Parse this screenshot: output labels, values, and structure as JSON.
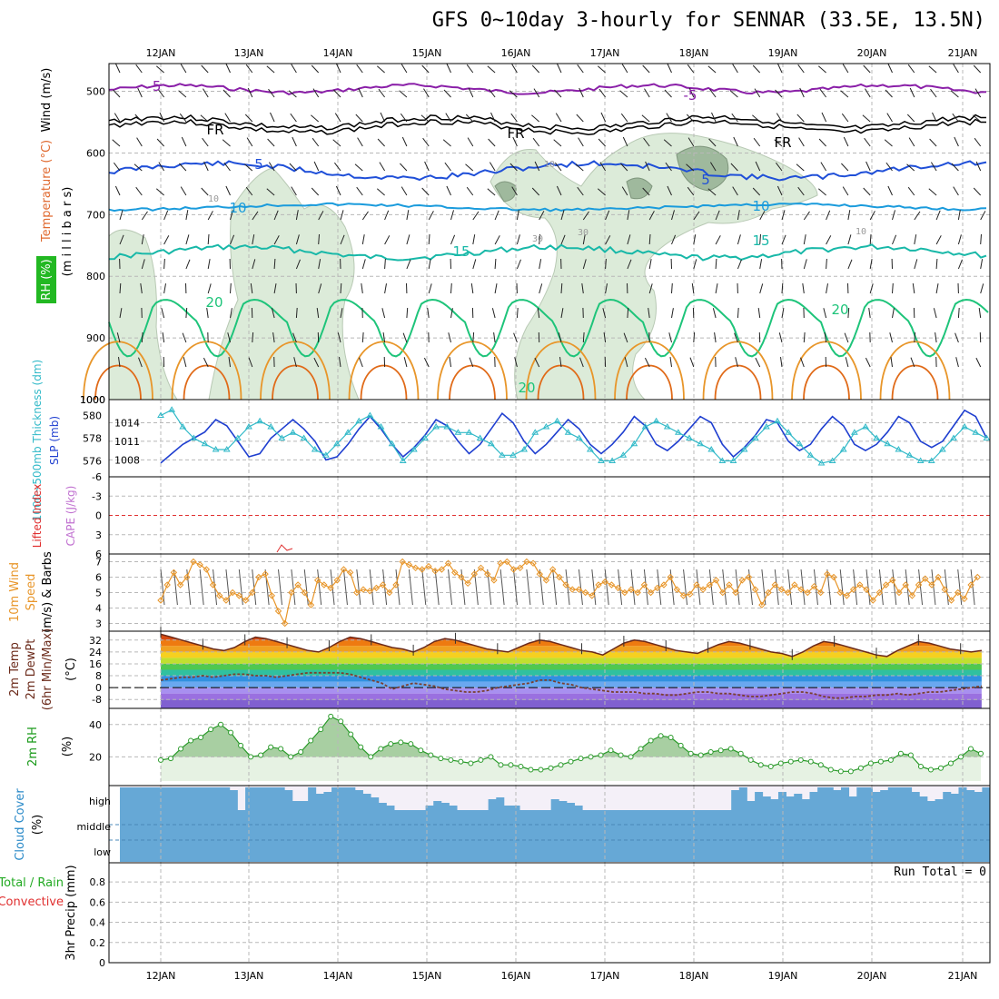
{
  "title": "GFS 0~10day 3-hourly for SENNAR (33.5E, 13.5N)",
  "colors": {
    "purple": "#8a1fa8",
    "freezing": "#000000",
    "blue": "#1f4fd8",
    "lightblue": "#1a9bdc",
    "teal": "#18b8a8",
    "green": "#1ec47a",
    "orange": "#e8962a",
    "darkorange": "#e06a18",
    "rhfill": "#dcebd9",
    "rhdark": "#9fb99d",
    "slp": "#1f3fd0",
    "thick": "#30b9c8",
    "wind10": "#e8962a",
    "cloud": "#66a8d6",
    "temp": "#6b2a1a",
    "dewpt": "#7a4030",
    "rh2m": "#2a9a2a",
    "rhfill2": "#e6f2e3"
  },
  "dates": [
    "12JAN",
    "13JAN",
    "14JAN",
    "15JAN",
    "16JAN",
    "17JAN",
    "18JAN",
    "19JAN",
    "20JAN",
    "21JAN"
  ],
  "panels": {
    "upper": {
      "ylabel_wind": "Wind (m/s)",
      "ylabel_temp": "Temperature (°C)",
      "ylabel_rh": "RH (%)",
      "ylabel_mb": "(m i l l i b a r s)",
      "pressure_ticks": [
        "500",
        "600",
        "700",
        "800",
        "900",
        "1000"
      ],
      "contour_labels": {
        "t_minus5": "-5",
        "fr": "FR",
        "t5": "5",
        "t10": "10",
        "t15": "15",
        "t20": "20",
        "rh10": "10",
        "rh30": "30"
      }
    },
    "thick": {
      "ylabel_thick": "1000~500mb Thickness (dm)",
      "ylabel_slp": "SLP (mb)",
      "left_ticks": [
        "580",
        "578",
        "576"
      ],
      "right_ticks": [
        "1014",
        "1011",
        "1008"
      ]
    },
    "cape": {
      "ylabel_li": "Lifted Index",
      "ylabel_cape": "CAPE (J/kg)",
      "ticks": [
        "-6",
        "-3",
        "0",
        "3",
        "6"
      ]
    },
    "wind10": {
      "ylabel_1": "10m Wind",
      "ylabel_2": "Speed",
      "ylabel_3": "(m/s) & Barbs",
      "ticks": [
        "7",
        "6",
        "5",
        "4",
        "3"
      ]
    },
    "temp2m": {
      "ylabel_1": "2m Temp",
      "ylabel_2": "2m DewPt",
      "ylabel_3": "(6hr Min/Max)",
      "ylabel_unit": "(°C)",
      "ticks": [
        "32",
        "24",
        "16",
        "8",
        "0",
        "-8"
      ]
    },
    "rh2m": {
      "ylabel": "2m RH",
      "unit": "(%)",
      "ticks": [
        "40",
        "20"
      ]
    },
    "cloud": {
      "ylabel_1": "Cloud Cover",
      "ylabel_2": "(%)",
      "levels": [
        "high",
        "middle",
        "low"
      ]
    },
    "precip": {
      "ylabel_1": "Total / Rain",
      "ylabel_2": "Convective",
      "ylabel_3": "3hr Precip (mm)",
      "run_total": "Run Total = 0",
      "ticks": [
        "0.8",
        "0.6",
        "0.4",
        "0.2",
        "0"
      ]
    }
  },
  "chart_data": [
    {
      "type": "line",
      "title": "1000~500mb Thickness (dm) & SLP (mb)",
      "x_start": "11JAN 12Z",
      "x_step_hours": 3,
      "series": [
        {
          "name": "SLP (mb)",
          "values": [
            1007.5,
            1009.0,
            1010.5,
            1011.5,
            1012.5,
            1014.5,
            1013.5,
            1011.0,
            1008.5,
            1009.0,
            1011.5,
            1013.0,
            1014.5,
            1013.0,
            1011.0,
            1008.0,
            1008.5,
            1010.5,
            1013.0,
            1015.0,
            1013.0,
            1010.5,
            1008.5,
            1010.0,
            1012.0,
            1014.5,
            1013.5,
            1011.0,
            1009.0,
            1010.5,
            1013.0,
            1015.5,
            1014.0,
            1011.0,
            1009.0,
            1010.5,
            1012.5,
            1014.5,
            1013.0,
            1010.5,
            1009.0,
            1010.5,
            1012.5,
            1015.0,
            1013.5,
            1010.5,
            1009.5,
            1011.0,
            1013.0,
            1015.0,
            1014.0,
            1010.5,
            1008.5,
            1010.0,
            1012.0,
            1014.5,
            1014.0,
            1011.0,
            1009.5,
            1010.5,
            1013.0,
            1015.0,
            1013.5,
            1010.5,
            1009.5,
            1010.5,
            1012.5,
            1015.0,
            1014.0,
            1011.0,
            1010.0,
            1011.0,
            1013.5,
            1016.0,
            1015.0,
            1011.5,
            1011.0,
            1012.5,
            1014.5
          ]
        },
        {
          "name": "1000~500mb Thickness (dm)",
          "values": [
            580.0,
            580.5,
            579.0,
            578.0,
            577.5,
            577.0,
            577.0,
            578.0,
            579.0,
            579.5,
            579.0,
            578.0,
            578.5,
            578.0,
            577.0,
            576.5,
            577.5,
            578.5,
            579.5,
            580.0,
            579.0,
            577.5,
            576.0,
            577.0,
            578.0,
            579.0,
            579.0,
            578.5,
            578.5,
            578.0,
            577.5,
            576.5,
            576.5,
            577.0,
            578.5,
            579.0,
            579.5,
            578.5,
            578.0,
            577.0,
            576.0,
            576.0,
            576.5,
            577.5,
            579.0,
            579.5,
            579.0,
            578.5,
            578.0,
            577.5,
            577.0,
            576.0,
            576.0,
            577.0,
            578.0,
            579.0,
            579.5,
            578.5,
            577.5,
            576.5,
            575.8,
            576.0,
            577.0,
            578.5,
            579.0,
            578.0,
            577.5,
            577.0,
            576.5,
            576.0,
            576.0,
            577.0,
            578.0,
            579.0,
            578.5,
            578.0,
            577.5,
            577.0,
            577.5
          ]
        }
      ],
      "ylim_left": [
        575,
        581
      ],
      "ylim_right": [
        1006,
        1017
      ]
    },
    {
      "type": "line",
      "title": "10m Wind Speed (m/s)",
      "x_start": "11JAN 12Z",
      "x_step_hours": 3,
      "series": [
        {
          "name": "10m Wind Speed",
          "values": [
            4.5,
            5.5,
            6.3,
            5.5,
            6.0,
            7.0,
            6.8,
            6.5,
            5.5,
            4.8,
            4.5,
            5.0,
            4.8,
            4.5,
            5.0,
            6.0,
            6.2,
            4.8,
            3.8,
            3.0,
            5.0,
            5.5,
            5.0,
            4.2,
            5.8,
            5.5,
            5.3,
            5.8,
            6.5,
            6.3,
            5.0,
            5.2,
            5.1,
            5.3,
            5.5,
            5.0,
            5.5,
            7.0,
            6.8,
            6.6,
            6.5,
            6.7,
            6.4,
            6.5,
            6.9,
            6.3,
            6.0,
            5.6,
            6.2,
            6.6,
            6.2,
            5.8,
            6.9,
            7.0,
            6.5,
            6.6,
            7.0,
            6.9,
            6.2,
            5.8,
            6.5,
            6.0,
            5.5,
            5.2,
            5.2,
            5.0,
            4.8,
            5.5,
            5.7,
            5.5,
            5.3,
            5.0,
            5.2,
            5.0,
            5.5,
            5.0,
            5.3,
            5.5,
            6.0,
            5.2,
            4.8,
            4.9,
            5.5,
            5.2,
            5.5,
            5.8,
            5.0,
            5.5,
            5.0,
            5.8,
            6.0,
            5.2,
            4.2,
            5.0,
            5.5,
            5.2,
            5.0,
            5.5,
            5.2,
            5.0,
            5.4,
            5.0,
            6.2,
            6.0,
            5.0,
            4.8,
            5.2,
            5.5,
            5.2,
            4.5,
            5.0,
            5.5,
            5.8,
            5.0,
            5.5,
            4.8,
            5.5,
            5.9,
            5.5,
            6.0,
            5.2,
            4.5,
            5.0,
            4.6,
            5.5,
            6.0
          ]
        }
      ],
      "ylim": [
        2.5,
        7.5
      ]
    },
    {
      "type": "area",
      "title": "2m Temp / 2m DewPt (°C)",
      "x_start": "11JAN 12Z",
      "x_step_hours": 3,
      "series": [
        {
          "name": "2m Temp",
          "values": [
            36,
            34,
            32,
            30,
            28,
            26,
            25,
            27,
            31,
            34,
            33,
            31,
            29,
            27,
            25,
            24,
            27,
            31,
            34,
            33,
            31,
            29,
            27,
            26,
            24,
            27,
            31,
            33,
            32,
            30,
            28,
            26,
            25,
            24,
            27,
            30,
            32,
            31,
            29,
            27,
            25,
            24,
            22,
            26,
            30,
            32,
            31,
            29,
            27,
            25,
            24,
            23,
            26,
            29,
            31,
            30,
            28,
            26,
            24,
            23,
            21,
            24,
            28,
            31,
            30,
            28,
            26,
            24,
            22,
            21,
            25,
            28,
            31,
            30,
            28,
            26,
            25,
            24,
            25
          ]
        },
        {
          "name": "2m DewPt",
          "values": [
            5,
            6,
            7,
            7,
            8,
            7,
            8,
            9,
            9,
            8,
            8,
            7,
            8,
            9,
            10,
            10,
            10,
            10,
            9,
            7,
            5,
            3,
            -1,
            1,
            3,
            2,
            1,
            -1,
            -2,
            -3,
            -3,
            -2,
            0,
            1,
            2,
            3,
            5,
            5,
            3,
            2,
            0,
            -1,
            -2,
            -3,
            -3,
            -3,
            -4,
            -4,
            -5,
            -5,
            -4,
            -3,
            -3,
            -4,
            -4,
            -5,
            -6,
            -6,
            -5,
            -4,
            -3,
            -3,
            -4,
            -6,
            -7,
            -7,
            -6,
            -6,
            -5,
            -5,
            -4,
            -5,
            -4,
            -3,
            -3,
            -2,
            -1,
            0,
            1
          ]
        }
      ],
      "ylim": [
        -14,
        38
      ]
    },
    {
      "type": "area",
      "title": "2m RH (%)",
      "x_start": "11JAN 12Z",
      "x_step_hours": 3,
      "series": [
        {
          "name": "2m RH",
          "values": [
            18,
            19,
            25,
            30,
            32,
            37,
            40,
            35,
            27,
            20,
            21,
            26,
            25,
            20,
            23,
            30,
            37,
            45,
            42,
            34,
            26,
            20,
            25,
            28,
            29,
            28,
            24,
            21,
            19,
            18,
            17,
            16,
            18,
            20,
            15,
            15,
            14,
            12,
            12,
            13,
            15,
            17,
            19,
            20,
            21,
            24,
            21,
            20,
            25,
            30,
            33,
            32,
            27,
            22,
            21,
            23,
            24,
            25,
            22,
            18,
            15,
            14,
            16,
            17,
            18,
            17,
            15,
            12,
            11,
            11,
            13,
            16,
            17,
            18,
            22,
            21,
            14,
            12,
            13,
            16,
            20,
            25,
            22
          ]
        }
      ],
      "ylim": [
        5,
        50
      ]
    }
  ]
}
